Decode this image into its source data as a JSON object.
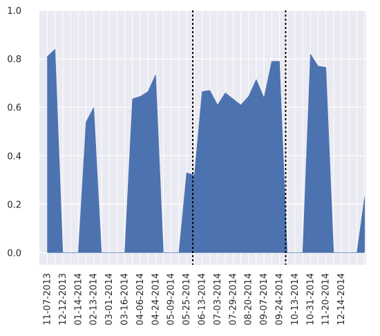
{
  "chart_data": {
    "type": "area",
    "title": "",
    "xlabel": "",
    "ylabel": "",
    "ylim": [
      -0.05,
      1.0
    ],
    "yticks": [
      "0.0",
      "0.2",
      "0.4",
      "0.6",
      "0.8",
      "1.0"
    ],
    "xtick_labels": [
      "11-07-2013",
      "12-12-2013",
      "01-14-2014",
      "02-13-2014",
      "03-01-2014",
      "03-16-2014",
      "04-06-2014",
      "04-24-2014",
      "05-09-2014",
      "05-25-2014",
      "06-13-2014",
      "07-03-2014",
      "07-29-2014",
      "08-20-2014",
      "09-07-2014",
      "09-24-2014",
      "10-13-2014",
      "10-31-2014",
      "11-20-2014",
      "12-14-2014"
    ],
    "x_index_range": [
      0,
      40
    ],
    "series": [
      {
        "color": "#4c72b0",
        "values": [
          0.81,
          0.84,
          0,
          0,
          0,
          0.54,
          0.6,
          0,
          0,
          0,
          0,
          0.635,
          0.645,
          0.665,
          0.735,
          0,
          0,
          0,
          0.33,
          0.32,
          0.665,
          0.67,
          0.61,
          0.66,
          0.635,
          0.61,
          0.645,
          0.715,
          0.64,
          0.79,
          0.79,
          0,
          0,
          0,
          0.82,
          0.77,
          0.765,
          0,
          0,
          0,
          0,
          0.23
        ]
      }
    ],
    "vertical_lines": [
      {
        "x_index": 18.8,
        "style": "dotted",
        "color": "#000000"
      },
      {
        "x_index": 30.8,
        "style": "dotted",
        "color": "#000000"
      }
    ],
    "grid": true,
    "background": "#eaeaf2"
  }
}
